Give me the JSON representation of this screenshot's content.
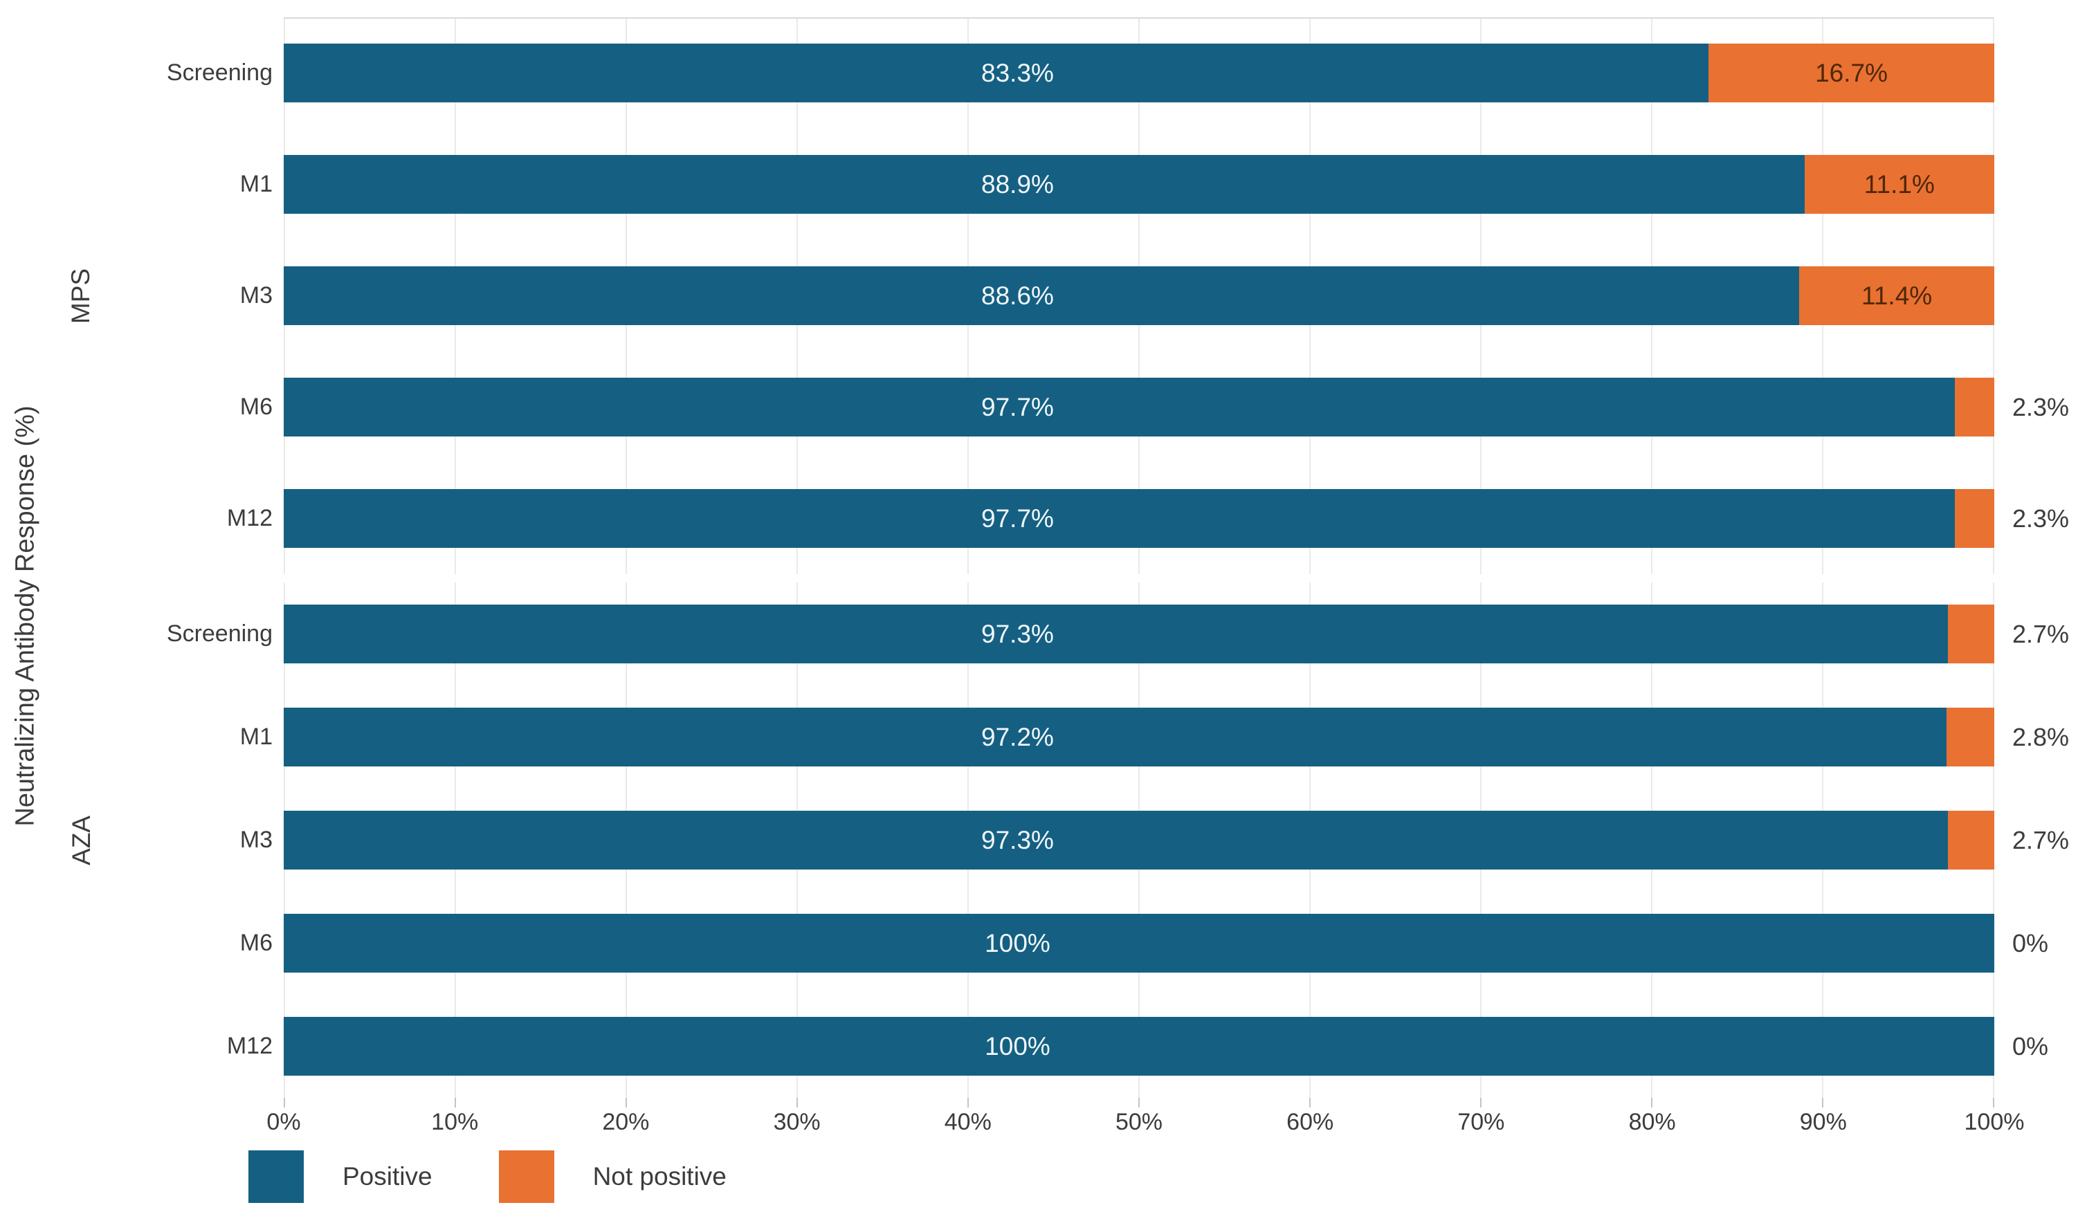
{
  "chart_data": {
    "type": "bar",
    "orientation": "horizontal",
    "stacked": true,
    "title": "",
    "xlabel": "",
    "ylabel": "Neutralizing Antibody Response (%)",
    "xlim": [
      0,
      100
    ],
    "x_ticks": [
      "0%",
      "10%",
      "20%",
      "30%",
      "40%",
      "50%",
      "60%",
      "70%",
      "80%",
      "90%",
      "100%"
    ],
    "grid": true,
    "legend_position": "bottom-left",
    "legend": [
      {
        "label": "Positive",
        "color": "#156082"
      },
      {
        "label": "Not positive",
        "color": "#E97132"
      }
    ],
    "groups": [
      {
        "name": "MPS",
        "rows": [
          {
            "label": "Screening",
            "positive": 83.3,
            "not_positive": 16.7,
            "positive_label": "83.3%",
            "not_positive_label": "16.7%",
            "not_positive_label_inside": true
          },
          {
            "label": "M1",
            "positive": 88.9,
            "not_positive": 11.1,
            "positive_label": "88.9%",
            "not_positive_label": "11.1%",
            "not_positive_label_inside": true
          },
          {
            "label": "M3",
            "positive": 88.6,
            "not_positive": 11.4,
            "positive_label": "88.6%",
            "not_positive_label": "11.4%",
            "not_positive_label_inside": true
          },
          {
            "label": "M6",
            "positive": 97.7,
            "not_positive": 2.3,
            "positive_label": "97.7%",
            "not_positive_label": "2.3%",
            "not_positive_label_inside": false
          },
          {
            "label": "M12",
            "positive": 97.7,
            "not_positive": 2.3,
            "positive_label": "97.7%",
            "not_positive_label": "2.3%",
            "not_positive_label_inside": false
          }
        ]
      },
      {
        "name": "AZA",
        "rows": [
          {
            "label": "Screening",
            "positive": 97.3,
            "not_positive": 2.7,
            "positive_label": "97.3%",
            "not_positive_label": "2.7%",
            "not_positive_label_inside": false
          },
          {
            "label": "M1",
            "positive": 97.2,
            "not_positive": 2.8,
            "positive_label": "97.2%",
            "not_positive_label": "2.8%",
            "not_positive_label_inside": false
          },
          {
            "label": "M3",
            "positive": 97.3,
            "not_positive": 2.7,
            "positive_label": "97.3%",
            "not_positive_label": "2.7%",
            "not_positive_label_inside": false
          },
          {
            "label": "M6",
            "positive": 100,
            "not_positive": 0,
            "positive_label": "100%",
            "not_positive_label": "0%",
            "not_positive_label_inside": false
          },
          {
            "label": "M12",
            "positive": 100,
            "not_positive": 0,
            "positive_label": "100%",
            "not_positive_label": "0%",
            "not_positive_label_inside": false
          }
        ]
      }
    ]
  },
  "colors": {
    "positive": "#156082",
    "notpositive": "#E97132",
    "label-light": "#F1F7FA",
    "label-dark": "#4F2708",
    "text": "#3C3C3C",
    "grid": "#ECEAE8",
    "panel-border": "#D9D9D9",
    "tick": "#C4C4C4"
  }
}
